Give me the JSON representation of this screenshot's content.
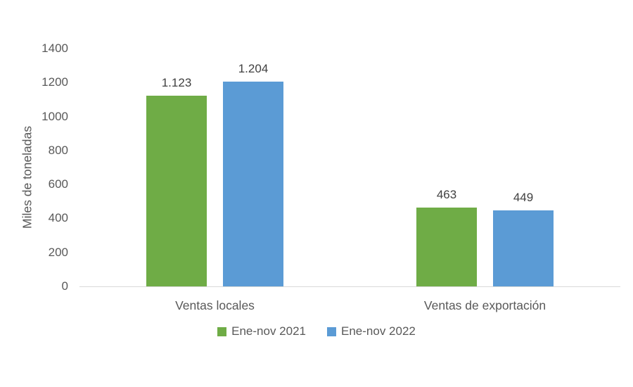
{
  "chart_data": {
    "type": "bar",
    "title": "",
    "ylabel": "Miles de toneladas",
    "xlabel": "",
    "categories": [
      "Ventas locales",
      "Ventas de exportación"
    ],
    "series": [
      {
        "name": "Ene-nov 2021",
        "color": "#6FAC46",
        "values": [
          1123,
          463
        ],
        "value_labels": [
          "1.123",
          "463"
        ]
      },
      {
        "name": "Ene-nov 2022",
        "color": "#5B9BD5",
        "values": [
          1204,
          449
        ],
        "value_labels": [
          "1.204",
          "449"
        ]
      }
    ],
    "ylim": [
      0,
      1400
    ],
    "yticks": [
      0,
      200,
      400,
      600,
      800,
      1000,
      1200,
      1400
    ],
    "grid": false,
    "legend_position": "bottom"
  },
  "colors": {
    "axis_line": "#d9d9d9",
    "tick_text": "#595959",
    "value_label_text": "#404040",
    "category_text": "#595959",
    "legend_text": "#595959"
  }
}
